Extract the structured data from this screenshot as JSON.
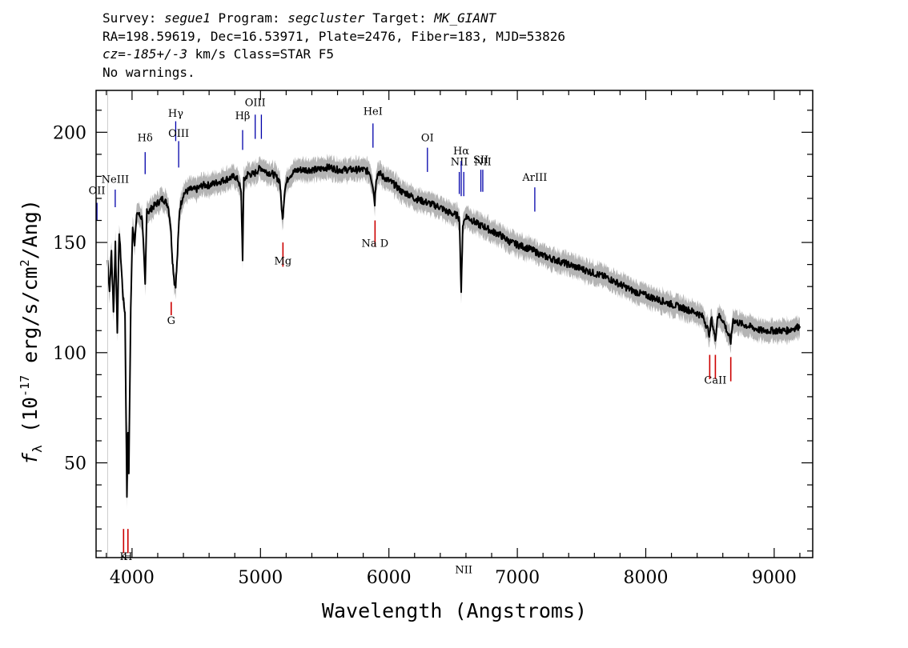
{
  "header": {
    "survey_label": "Survey:",
    "survey": "segue1",
    "program_label": "Program:",
    "program": "segcluster",
    "target_label": "Target:",
    "target": "MK_GIANT",
    "line2": "RA=198.59619, Dec=16.53971, Plate=2476, Fiber=183, MJD=53826",
    "cz_label": "cz=",
    "cz_value": "-185+/-3",
    "cz_rest": " km/s Class=STAR F5",
    "warnings": "No warnings."
  },
  "chart_data": {
    "type": "line",
    "title": "",
    "xlabel": "Wavelength (Angstroms)",
    "ylabel_prefix": "f",
    "ylabel_sub": "λ",
    "ylabel_open": " (10",
    "ylabel_exp": "-17",
    "ylabel_mid": " erg/s/cm",
    "ylabel_exp2": "2",
    "ylabel_tail": "/Ang)",
    "xlim": [
      3720,
      9300
    ],
    "ylim": [
      7,
      219
    ],
    "x_ticks": [
      {
        "value": 4000,
        "label": "4000"
      },
      {
        "value": 5000,
        "label": "5000"
      },
      {
        "value": 6000,
        "label": "6000"
      },
      {
        "value": 7000,
        "label": "7000"
      },
      {
        "value": 8000,
        "label": "8000"
      },
      {
        "value": 9000,
        "label": "9000"
      }
    ],
    "y_ticks": [
      {
        "value": 50,
        "label": "50"
      },
      {
        "value": 100,
        "label": "100"
      },
      {
        "value": 150,
        "label": "150"
      },
      {
        "value": 200,
        "label": "200"
      }
    ],
    "colors": {
      "spectrum": "#000000",
      "error_band": "#b4b4b4",
      "emission": "#0000aa",
      "absorption": "#cc0000"
    },
    "series": [
      {
        "x": [
          3810,
          3825,
          3840,
          3855,
          3870,
          3885,
          3900,
          3915,
          3930,
          3945,
          3960,
          3968,
          3975,
          3990,
          4005,
          4020,
          4040,
          4060,
          4080,
          4102,
          4115,
          4130,
          4160,
          4200,
          4240,
          4280,
          4300,
          4315,
          4330,
          4340,
          4350,
          4370,
          4400,
          4450,
          4500,
          4550,
          4600,
          4650,
          4700,
          4750,
          4800,
          4830,
          4850,
          4861,
          4870,
          4900,
          4950,
          5000,
          5050,
          5100,
          5150,
          5172,
          5190,
          5220,
          5260,
          5300,
          5350,
          5400,
          5450,
          5500,
          5550,
          5600,
          5650,
          5700,
          5750,
          5800,
          5850,
          5875,
          5890,
          5900,
          5920,
          5950,
          6000,
          6050,
          6100,
          6150,
          6200,
          6250,
          6300,
          6350,
          6400,
          6450,
          6500,
          6540,
          6550,
          6563,
          6575,
          6600,
          6650,
          6700,
          6750,
          6800,
          6850,
          6900,
          6950,
          7000,
          7100,
          7200,
          7300,
          7400,
          7500,
          7600,
          7700,
          7800,
          7900,
          8000,
          8100,
          8200,
          8300,
          8400,
          8450,
          8498,
          8510,
          8542,
          8560,
          8600,
          8662,
          8680,
          8700,
          8800,
          8900,
          9000,
          9100,
          9200
        ],
        "y": [
          142,
          128,
          146,
          118,
          150,
          110,
          155,
          140,
          125,
          118,
          35,
          65,
          46,
          120,
          158,
          150,
          164,
          162,
          161,
          130,
          165,
          164,
          166,
          168,
          170,
          167,
          158,
          142,
          132,
          131,
          140,
          165,
          172,
          174,
          174,
          176,
          176,
          177,
          178,
          179,
          180,
          178,
          172,
          143,
          178,
          181,
          181,
          184,
          182,
          181,
          178,
          160,
          175,
          180,
          182,
          183,
          183,
          183,
          183,
          184,
          184,
          183,
          183,
          183,
          183,
          183,
          182,
          176,
          168,
          179,
          182,
          180,
          178,
          176,
          173,
          172,
          170,
          169,
          168,
          167,
          166,
          164,
          163,
          162,
          160,
          126,
          158,
          162,
          160,
          158,
          157,
          155,
          154,
          152,
          150,
          149,
          147,
          144,
          142,
          140,
          138,
          136,
          134,
          131,
          128,
          126,
          124,
          122,
          120,
          118,
          116,
          108,
          116,
          106,
          117,
          115,
          105,
          115,
          114,
          112,
          110,
          110,
          110,
          112
        ]
      }
    ],
    "lines": [
      {
        "label": "OII",
        "x": 3727,
        "kind": "emission",
        "y_text": 172,
        "y_top": 168,
        "y_bottom": 160
      },
      {
        "label": "NeIII",
        "x": 3869,
        "kind": "emission",
        "y_text": 177,
        "y_top": 174,
        "y_bottom": 166
      },
      {
        "label": "Hδ",
        "x": 4102,
        "kind": "emission",
        "y_text": 196,
        "y_top": 191,
        "y_bottom": 181
      },
      {
        "label": "Hγ",
        "x": 4340,
        "kind": "emission",
        "y_text": 207,
        "y_top": 205,
        "y_bottom": 196
      },
      {
        "label": "OIII",
        "x": 4363,
        "kind": "emission",
        "y_text": 198,
        "y_top": 196,
        "y_bottom": 184
      },
      {
        "label": "Hβ",
        "x": 4861,
        "kind": "emission",
        "y_text": 206,
        "y_top": 201,
        "y_bottom": 192
      },
      {
        "label": "OIII",
        "x": 4959,
        "kind": "emission",
        "y_text": 212,
        "y_top": 208,
        "y_bottom": 197
      },
      {
        "label": "",
        "x": 5007,
        "kind": "emission",
        "y_text": 0,
        "y_top": 208,
        "y_bottom": 197
      },
      {
        "label": "HeI",
        "x": 5876,
        "kind": "emission",
        "y_text": 208,
        "y_top": 204,
        "y_bottom": 193
      },
      {
        "label": "OI",
        "x": 6300,
        "kind": "emission",
        "y_text": 196,
        "y_top": 193,
        "y_bottom": 182
      },
      {
        "label": "NII",
        "x": 6548,
        "kind": "emission",
        "y_text": 185,
        "y_top": 182,
        "y_bottom": 172
      },
      {
        "label": "Hα",
        "x": 6563,
        "kind": "emission",
        "y_text": 190,
        "y_top": 187,
        "y_bottom": 171
      },
      {
        "label": "NII",
        "x": 6583,
        "kind": "emission",
        "y_text": 0,
        "y_top": 182,
        "y_bottom": 171
      },
      {
        "label": "SII",
        "x": 6716,
        "kind": "emission",
        "y_text": 186,
        "y_top": 183,
        "y_bottom": 173
      },
      {
        "label": "NII",
        "x": 6731,
        "kind": "emission",
        "y_text": 185,
        "y_top": 183,
        "y_bottom": 173
      },
      {
        "label": "ArIII",
        "x": 7136,
        "kind": "emission",
        "y_text": 178,
        "y_top": 175,
        "y_bottom": 164
      },
      {
        "label": "K",
        "x": 3934,
        "kind": "absorption",
        "y_text": 6,
        "y_top": 20,
        "y_bottom": 9
      },
      {
        "label": "H",
        "x": 3968,
        "kind": "absorption",
        "y_text": 6,
        "y_top": 20,
        "y_bottom": 9
      },
      {
        "label": "G",
        "x": 4305,
        "kind": "absorption",
        "y_text": 113,
        "y_top": 123,
        "y_bottom": 117
      },
      {
        "label": "Mg",
        "x": 5175,
        "kind": "absorption",
        "y_text": 140,
        "y_top": 150,
        "y_bottom": 139
      },
      {
        "label": "Na D",
        "x": 5892,
        "kind": "absorption",
        "y_text": 148,
        "y_top": 160,
        "y_bottom": 148
      },
      {
        "label": "CaII",
        "x": 8542,
        "kind": "absorption",
        "y_text": 86,
        "y_top": 99,
        "y_bottom": 88
      },
      {
        "label": "",
        "x": 8498,
        "kind": "absorption",
        "y_text": 0,
        "y_top": 99,
        "y_bottom": 88
      },
      {
        "label": "",
        "x": 8662,
        "kind": "absorption",
        "y_text": 0,
        "y_top": 98,
        "y_bottom": 87
      }
    ]
  }
}
